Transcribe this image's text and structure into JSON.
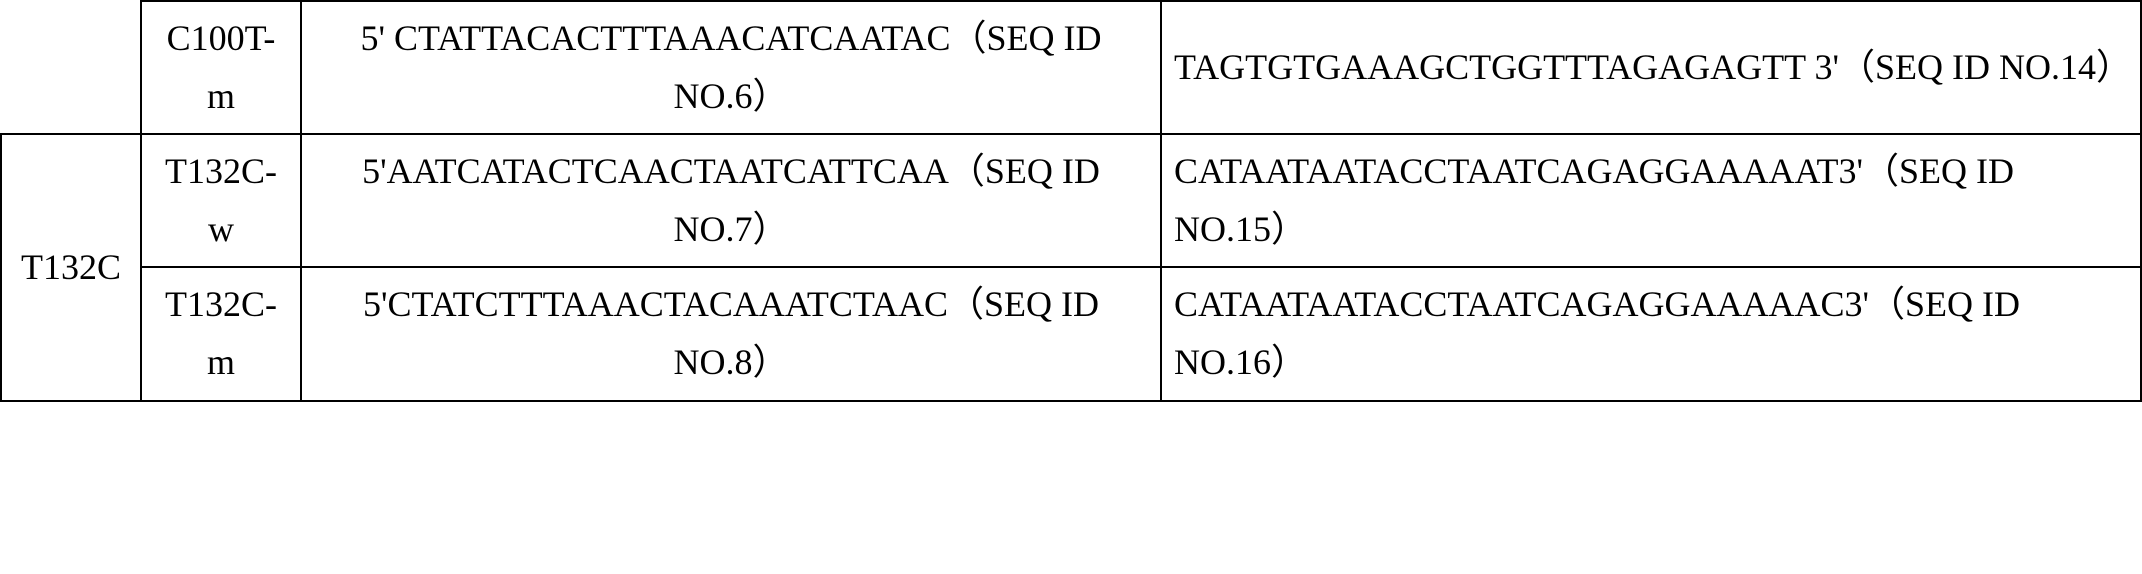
{
  "table": {
    "rows": [
      {
        "mutation": "",
        "variant": "C100T-m",
        "seq1": "5' CTATTACACTTTAAACATCAATAC（SEQ ID NO.6）",
        "seq2": "TAGTGTGAAAGCTGGTTTAGAGAGTT 3'（SEQ ID NO.14）"
      },
      {
        "mutation": "T132C",
        "variant": "T132C-w",
        "seq1": "5'AATCATACTCAACTAATCATTCAA（SEQ ID NO.7）",
        "seq2": "CATAATAATACCTAATCAGAGGAAAAAT3'（SEQ ID NO.15）"
      },
      {
        "mutation": "",
        "variant": "T132C-m",
        "seq1": "5'CTATCTTTAAACTACAAATCTAAC（SEQ ID NO.8）",
        "seq2": "CATAATAATACCTAATCAGAGGAAAAAC3'（SEQ ID NO.16）"
      }
    ]
  }
}
